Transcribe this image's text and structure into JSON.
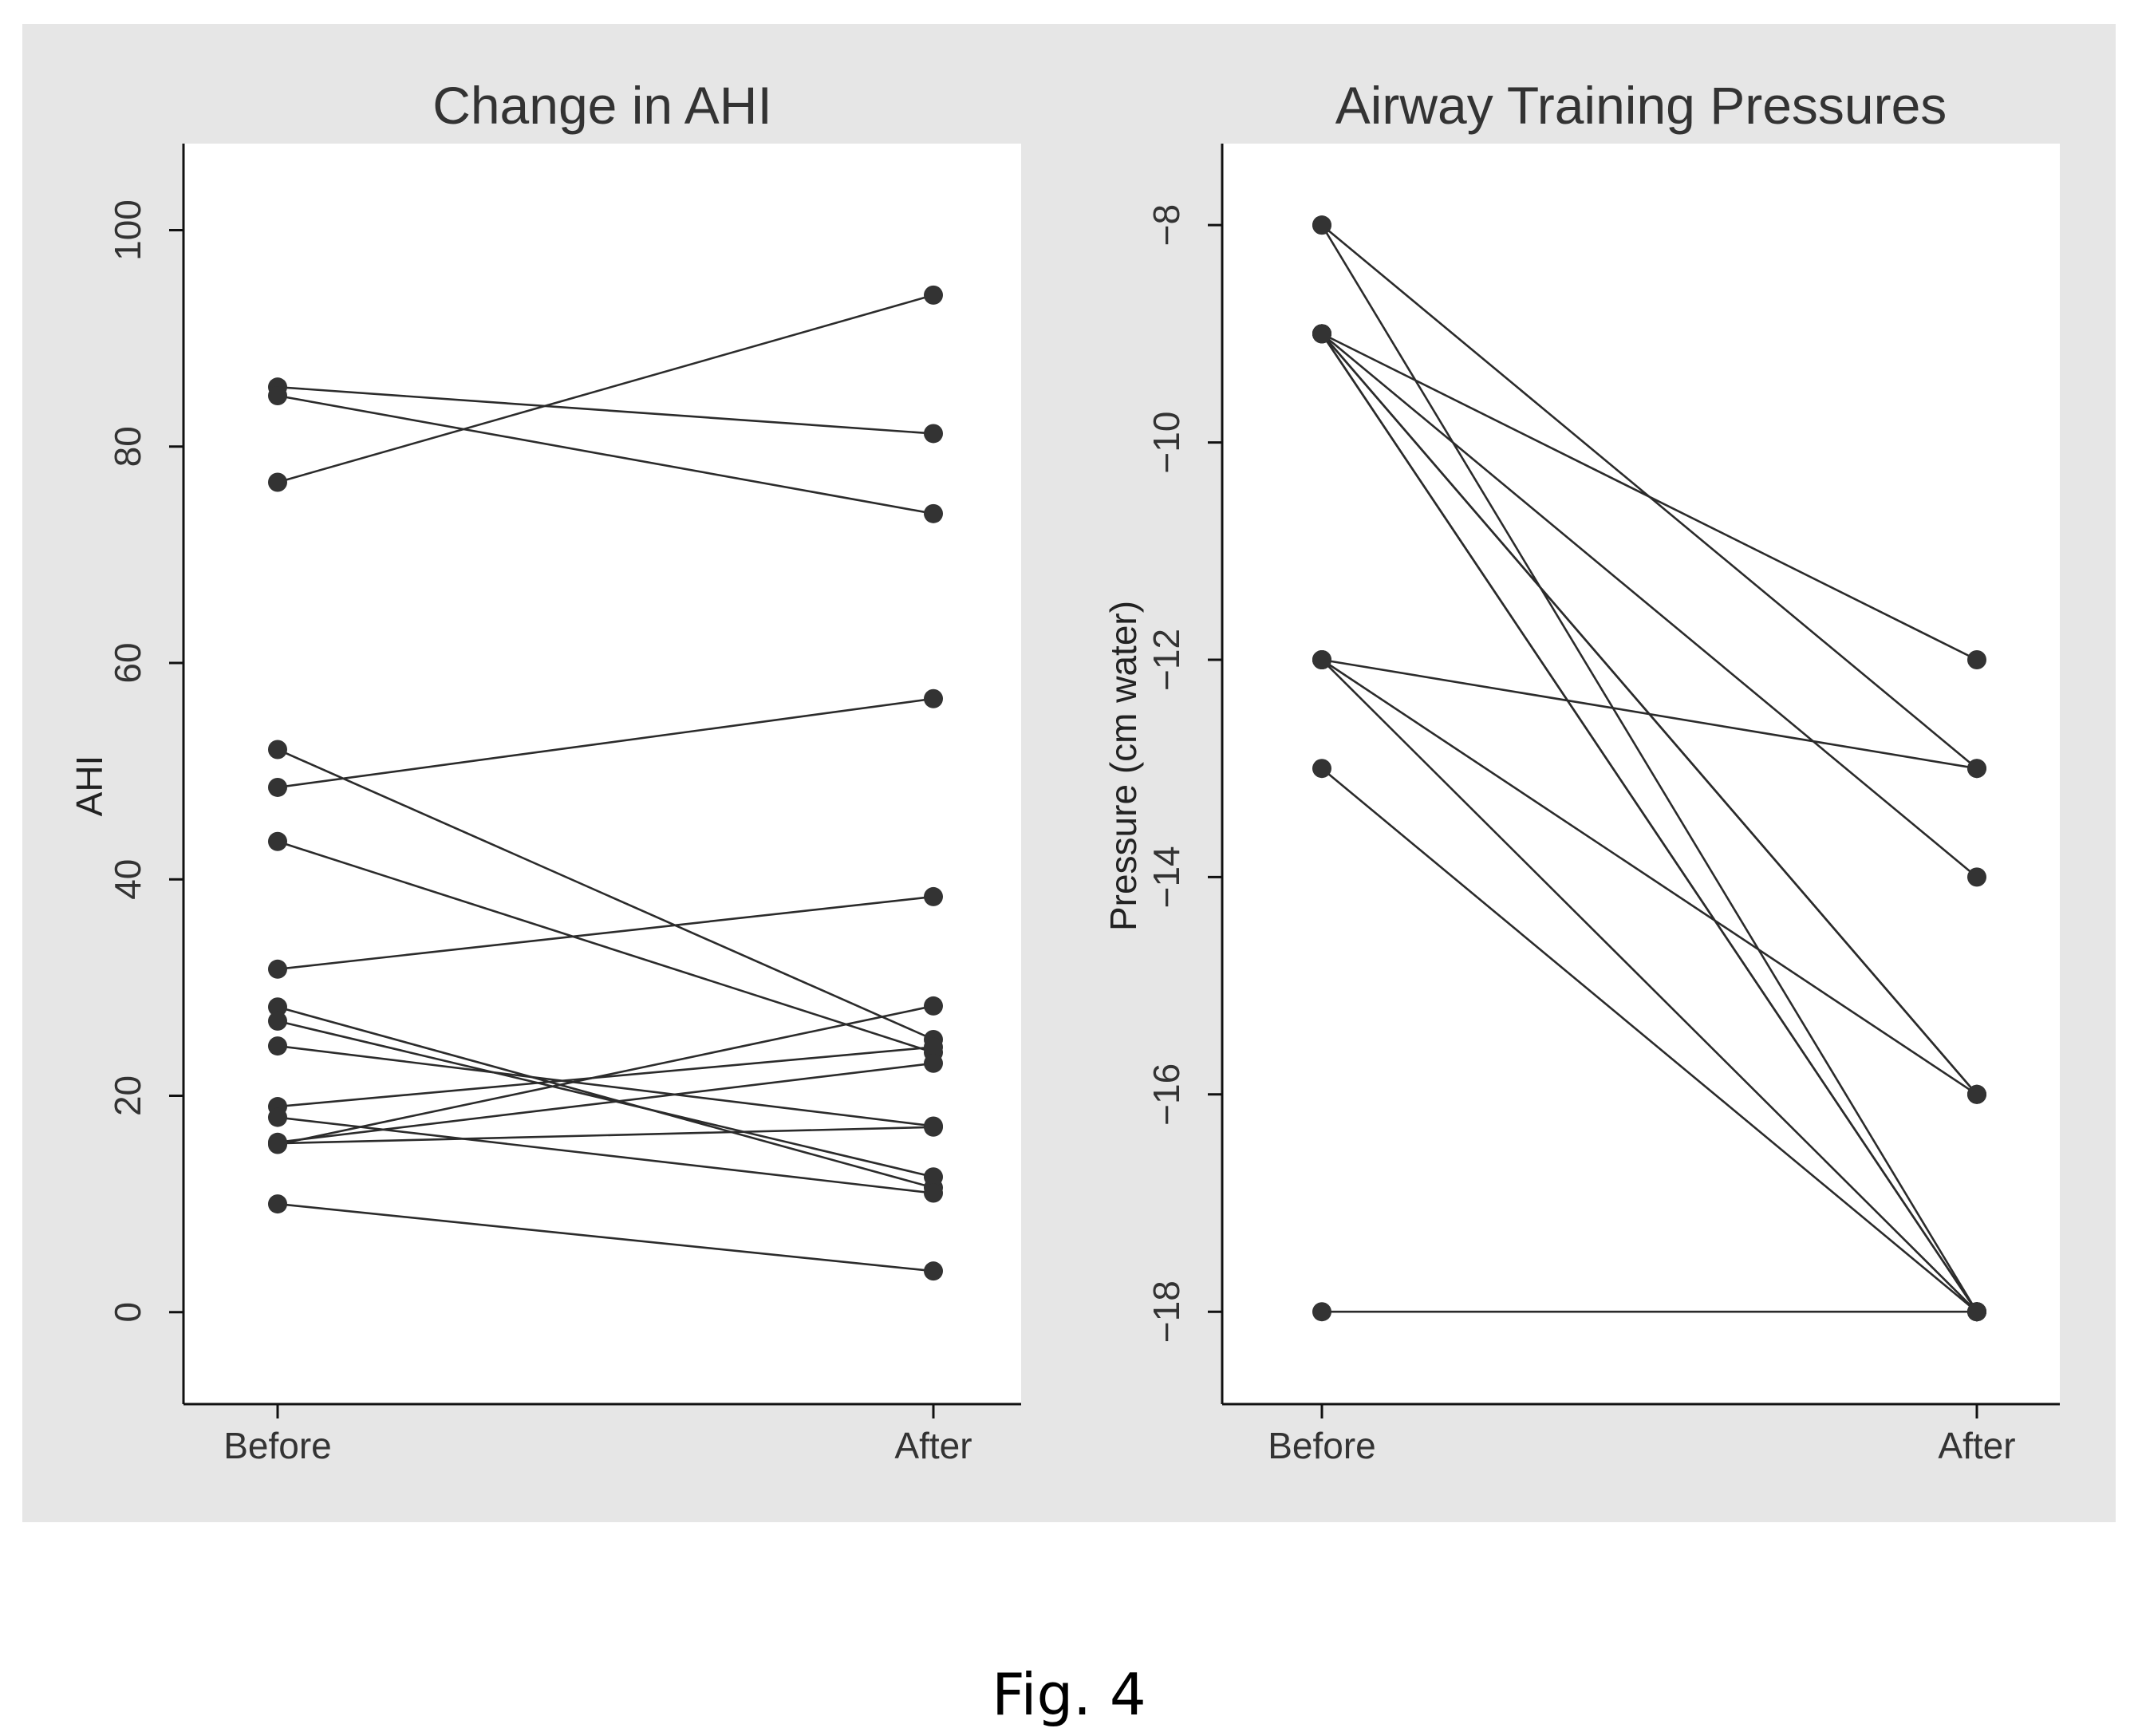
{
  "caption": "Fig. 4",
  "chart_data": [
    {
      "type": "line",
      "title": "Change in AHI",
      "xlabel": "",
      "ylabel": "AHI",
      "categories": [
        "Before",
        "After"
      ],
      "ylim": [
        -8.5,
        108
      ],
      "yticks": [
        0,
        20,
        40,
        60,
        80,
        100
      ],
      "yticklabels": [
        "0",
        "20",
        "40",
        "60",
        "80",
        "100"
      ],
      "grid": false,
      "series": [
        {
          "values": [
            76.7,
            94.0
          ]
        },
        {
          "values": [
            85.5,
            81.2
          ]
        },
        {
          "values": [
            84.7,
            73.8
          ]
        },
        {
          "values": [
            48.5,
            56.7
          ]
        },
        {
          "values": [
            52.0,
            25.2
          ]
        },
        {
          "values": [
            43.5,
            24.0
          ]
        },
        {
          "values": [
            31.7,
            38.4
          ]
        },
        {
          "values": [
            28.2,
            11.5
          ]
        },
        {
          "values": [
            26.9,
            12.5
          ]
        },
        {
          "values": [
            24.6,
            17.2
          ]
        },
        {
          "values": [
            19.0,
            24.5
          ]
        },
        {
          "values": [
            18.0,
            11.0
          ]
        },
        {
          "values": [
            15.7,
            23.0
          ]
        },
        {
          "values": [
            15.6,
            17.1
          ]
        },
        {
          "values": [
            15.5,
            28.3
          ]
        },
        {
          "values": [
            10.0,
            3.8
          ]
        }
      ]
    },
    {
      "type": "line",
      "title": "Airway Training Pressures",
      "xlabel": "",
      "ylabel": "Pressure (cm water)",
      "categories": [
        "Before",
        "After"
      ],
      "ylim": [
        -18.85,
        -7.25
      ],
      "yticks": [
        -8,
        -10,
        -12,
        -14,
        -16,
        -18
      ],
      "yticklabels": [
        "−8",
        "−10",
        "−12",
        "−14",
        "−16",
        "−18"
      ],
      "grid": false,
      "series": [
        {
          "values": [
            -8,
            -13
          ]
        },
        {
          "values": [
            -8,
            -18
          ]
        },
        {
          "values": [
            -9,
            -12
          ]
        },
        {
          "values": [
            -9,
            -14
          ]
        },
        {
          "values": [
            -9,
            -16
          ]
        },
        {
          "values": [
            -9,
            -16
          ]
        },
        {
          "values": [
            -9,
            -18
          ]
        },
        {
          "values": [
            -9,
            -18
          ]
        },
        {
          "values": [
            -12,
            -13
          ]
        },
        {
          "values": [
            -12,
            -16
          ]
        },
        {
          "values": [
            -12,
            -18
          ]
        },
        {
          "values": [
            -13,
            -18
          ]
        },
        {
          "values": [
            -18,
            -18
          ]
        }
      ]
    }
  ]
}
